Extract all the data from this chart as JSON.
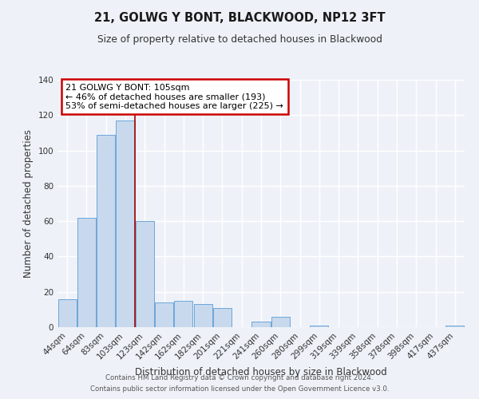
{
  "title": "21, GOLWG Y BONT, BLACKWOOD, NP12 3FT",
  "subtitle": "Size of property relative to detached houses in Blackwood",
  "xlabel": "Distribution of detached houses by size in Blackwood",
  "ylabel": "Number of detached properties",
  "bar_color": "#c8d9ed",
  "bar_edge_color": "#5b9bd5",
  "background_color": "#eef2f8",
  "grid_color": "#ffffff",
  "categories": [
    "44sqm",
    "64sqm",
    "83sqm",
    "103sqm",
    "123sqm",
    "142sqm",
    "162sqm",
    "182sqm",
    "201sqm",
    "221sqm",
    "241sqm",
    "260sqm",
    "280sqm",
    "299sqm",
    "319sqm",
    "339sqm",
    "358sqm",
    "378sqm",
    "398sqm",
    "417sqm",
    "437sqm"
  ],
  "values": [
    16,
    62,
    109,
    117,
    60,
    14,
    15,
    13,
    11,
    0,
    3,
    6,
    0,
    1,
    0,
    0,
    0,
    0,
    0,
    0,
    1
  ],
  "ylim": [
    0,
    140
  ],
  "yticks": [
    0,
    20,
    40,
    60,
    80,
    100,
    120,
    140
  ],
  "annotation_title": "21 GOLWG Y BONT: 105sqm",
  "annotation_line1": "← 46% of detached houses are smaller (193)",
  "annotation_line2": "53% of semi-detached houses are larger (225) →",
  "annotation_box_color": "#ffffff",
  "annotation_box_edge": "#cc0000",
  "property_line_x": 3.5,
  "property_line_color": "#aa0000",
  "footer1": "Contains HM Land Registry data © Crown copyright and database right 2024.",
  "footer2": "Contains public sector information licensed under the Open Government Licence v3.0."
}
